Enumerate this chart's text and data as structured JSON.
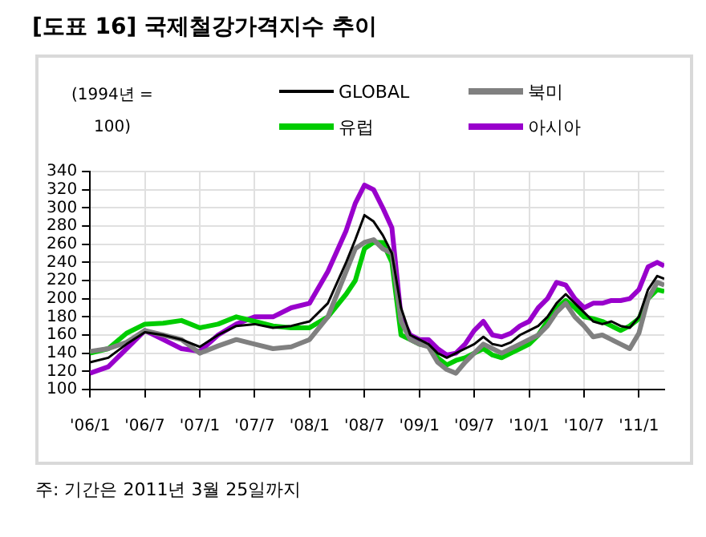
{
  "chart_data": {
    "type": "line",
    "title": "[도표 16] 국제철강가격지수 추이",
    "ylabel": "(1994년 = 100)",
    "x": [
      "2006-01",
      "2006-03",
      "2006-05",
      "2006-07",
      "2006-09",
      "2006-11",
      "2007-01",
      "2007-03",
      "2007-05",
      "2007-07",
      "2007-09",
      "2007-11",
      "2008-01",
      "2008-03",
      "2008-05",
      "2008-06",
      "2008-07",
      "2008-08",
      "2008-09",
      "2008-10",
      "2008-11",
      "2008-12",
      "2009-01",
      "2009-02",
      "2009-03",
      "2009-04",
      "2009-05",
      "2009-06",
      "2009-07",
      "2009-08",
      "2009-09",
      "2009-10",
      "2009-11",
      "2009-12",
      "2010-01",
      "2010-02",
      "2010-03",
      "2010-04",
      "2010-05",
      "2010-06",
      "2010-07",
      "2010-08",
      "2010-09",
      "2010-10",
      "2010-11",
      "2010-12",
      "2011-01",
      "2011-02",
      "2011-03",
      "2011-03-25"
    ],
    "series": [
      {
        "name": "GLOBAL",
        "color": "#000000",
        "values": [
          130,
          135,
          150,
          163,
          160,
          155,
          147,
          160,
          170,
          172,
          168,
          170,
          175,
          195,
          240,
          265,
          292,
          285,
          270,
          250,
          190,
          160,
          155,
          150,
          140,
          135,
          140,
          145,
          150,
          158,
          150,
          148,
          152,
          160,
          165,
          170,
          180,
          195,
          205,
          195,
          185,
          175,
          172,
          175,
          170,
          168,
          180,
          210,
          225,
          222
        ]
      },
      {
        "name": "북미",
        "color": "#808080",
        "values": [
          142,
          145,
          152,
          165,
          160,
          155,
          140,
          148,
          155,
          150,
          145,
          147,
          155,
          180,
          230,
          255,
          262,
          265,
          255,
          250,
          175,
          155,
          150,
          147,
          130,
          122,
          118,
          130,
          140,
          150,
          145,
          140,
          145,
          150,
          155,
          160,
          170,
          185,
          195,
          180,
          170,
          158,
          160,
          155,
          150,
          145,
          162,
          200,
          218,
          215
        ]
      },
      {
        "name": "유럽",
        "color": "#00cc00",
        "values": [
          140,
          145,
          162,
          172,
          173,
          176,
          168,
          172,
          180,
          175,
          170,
          168,
          168,
          180,
          205,
          220,
          255,
          262,
          262,
          240,
          160,
          155,
          150,
          148,
          135,
          127,
          132,
          135,
          140,
          145,
          138,
          135,
          140,
          145,
          150,
          160,
          175,
          190,
          198,
          190,
          180,
          178,
          175,
          170,
          165,
          170,
          178,
          200,
          210,
          208
        ]
      },
      {
        "name": "아시아",
        "color": "#9900cc",
        "values": [
          118,
          125,
          145,
          165,
          155,
          145,
          142,
          160,
          172,
          180,
          180,
          190,
          195,
          230,
          275,
          305,
          325,
          320,
          300,
          278,
          180,
          160,
          155,
          155,
          145,
          138,
          140,
          150,
          165,
          175,
          160,
          158,
          162,
          170,
          175,
          190,
          200,
          218,
          215,
          200,
          190,
          195,
          195,
          198,
          198,
          200,
          210,
          235,
          240,
          236
        ]
      }
    ],
    "xlim": [
      "2006-01",
      "2011-03-25"
    ],
    "xticks": [
      {
        "value": "2006-01",
        "label": "'06/1"
      },
      {
        "value": "2006-07",
        "label": "'06/7"
      },
      {
        "value": "2007-01",
        "label": "'07/1"
      },
      {
        "value": "2007-07",
        "label": "'07/7"
      },
      {
        "value": "2008-01",
        "label": "'08/1"
      },
      {
        "value": "2008-07",
        "label": "'08/7"
      },
      {
        "value": "2009-01",
        "label": "'09/1"
      },
      {
        "value": "2009-07",
        "label": "'09/7"
      },
      {
        "value": "2010-01",
        "label": "'10/1"
      },
      {
        "value": "2010-07",
        "label": "'10/7"
      },
      {
        "value": "2011-01",
        "label": "'11/1"
      }
    ],
    "ylim": [
      100,
      340
    ],
    "yticks": [
      100,
      120,
      140,
      160,
      180,
      200,
      220,
      240,
      260,
      280,
      300,
      320,
      340
    ],
    "grid": true,
    "legend": "top right",
    "marker": "none",
    "line_style": "solid",
    "annotations": [
      "주: 기간은 2011년 3월 25일까지"
    ]
  }
}
